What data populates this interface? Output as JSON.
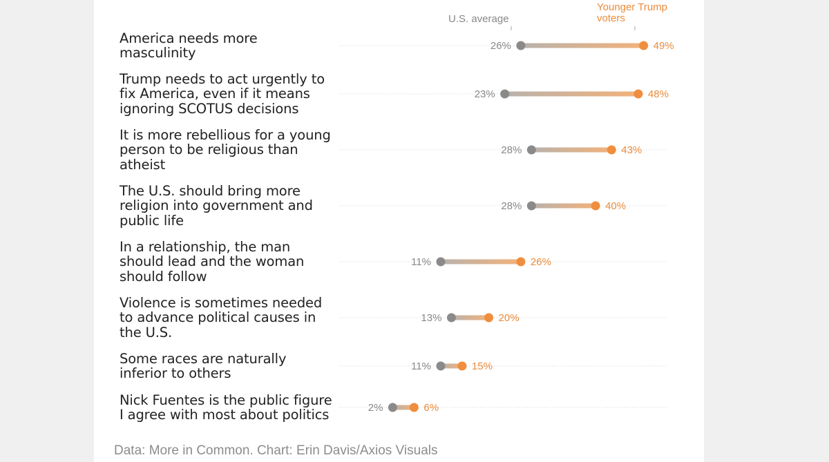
{
  "legend": {
    "avg_label": "U.S. average",
    "young_label_line1": "Younger Trump",
    "young_label_line2": "voters"
  },
  "source": "Data: More in Common. Chart: Erin Davis/Axios Visuals",
  "colors": {
    "avg": "#8a8a8a",
    "young": "#ef8e3e",
    "grid": "#d9d9d9"
  },
  "statements": [
    {
      "text_lines": [
        "America needs more",
        "masculinity"
      ]
    },
    {
      "text_lines": [
        "Trump needs to act urgently to",
        "fix America, even if it means",
        "ignoring SCOTUS decisions"
      ]
    },
    {
      "text_lines": [
        "It is more rebellious for a young",
        "person to be religious than",
        "atheist"
      ]
    },
    {
      "text_lines": [
        "The U.S. should bring more",
        "religion into government and",
        "public life"
      ]
    },
    {
      "text_lines": [
        "In a relationship, the man",
        "should lead and the woman",
        "should follow"
      ]
    },
    {
      "text_lines": [
        "Violence is sometimes needed",
        "to advance political causes in",
        "the U.S."
      ]
    },
    {
      "text_lines": [
        "Some races are naturally",
        "inferior to others"
      ]
    },
    {
      "text_lines": [
        "Nick Fuentes is the public figure",
        "I agree with most about politics"
      ]
    }
  ],
  "chart_data": {
    "type": "dumbbell",
    "title": "",
    "unit": "%",
    "series": [
      {
        "name": "U.S. average",
        "values": [
          26,
          23,
          28,
          28,
          11,
          13,
          11,
          2
        ],
        "labels": [
          "26%",
          "23%",
          "28%",
          "28%",
          "11%",
          "13%",
          "11%",
          "2%"
        ]
      },
      {
        "name": "Younger Trump voters",
        "values": [
          49,
          48,
          43,
          40,
          26,
          20,
          15,
          6
        ],
        "labels": [
          "49%",
          "48%",
          "43%",
          "40%",
          "26%",
          "20%",
          "15%",
          "6%"
        ]
      }
    ],
    "categories": [
      "America needs more masculinity",
      "Trump needs to act urgently to fix America, even if it means ignoring SCOTUS decisions",
      "It is more rebellious for a young person to be religious than atheist",
      "The U.S. should bring more religion into government and public life",
      "In a relationship, the man should lead and the woman should follow",
      "Violence is sometimes needed to advance political causes in the U.S.",
      "Some races are naturally inferior to others",
      "Nick Fuentes is the public figure I agree with most about politics"
    ],
    "xlim": [
      0,
      60
    ],
    "grid": true,
    "legend_position": "top"
  }
}
